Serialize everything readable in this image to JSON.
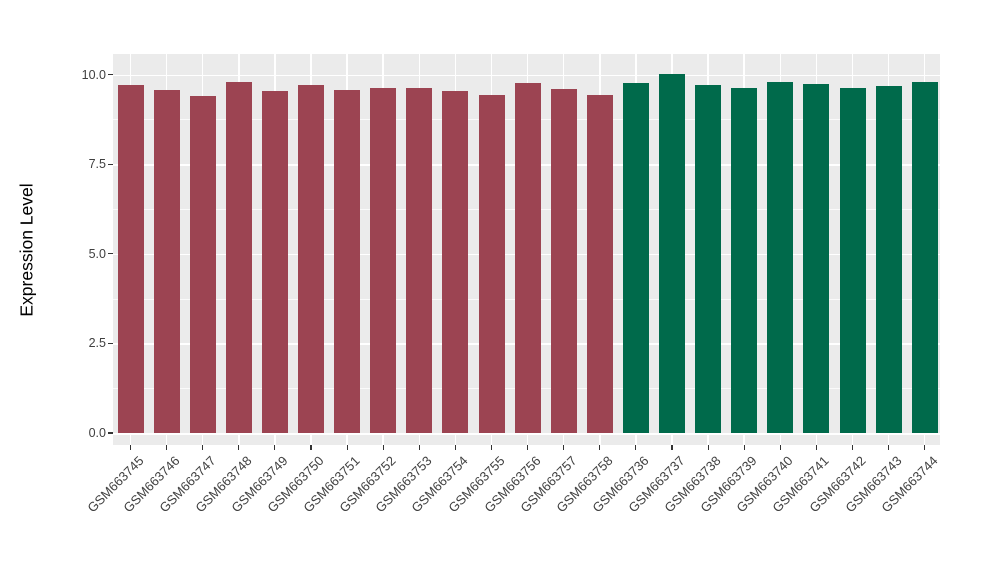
{
  "chart_data": {
    "type": "bar",
    "title": "",
    "xlabel": "",
    "ylabel": "Expression Level",
    "ylim": [
      0,
      10.55
    ],
    "y_ticks": [
      0.0,
      2.5,
      5.0,
      7.5,
      10.0
    ],
    "y_tick_labels": [
      "0.0",
      "2.5",
      "5.0",
      "7.5",
      "10.0"
    ],
    "y_minor_ticks": [
      1.25,
      3.75,
      6.25,
      8.75
    ],
    "grid": "on",
    "legend_position": "none",
    "panel_background": "#EBEBEB",
    "grid_color": "#FFFFFF",
    "group_colors": {
      "group1": "#9C4452",
      "group2": "#006A4B"
    },
    "categories": [
      "GSM663745",
      "GSM663746",
      "GSM663747",
      "GSM663748",
      "GSM663749",
      "GSM663750",
      "GSM663751",
      "GSM663752",
      "GSM663753",
      "GSM663754",
      "GSM663755",
      "GSM663756",
      "GSM663757",
      "GSM663758",
      "GSM663736",
      "GSM663737",
      "GSM663738",
      "GSM663739",
      "GSM663740",
      "GSM663741",
      "GSM663742",
      "GSM663743",
      "GSM663744"
    ],
    "values": [
      9.7,
      9.56,
      9.4,
      9.81,
      9.54,
      9.72,
      9.58,
      9.63,
      9.64,
      9.54,
      9.44,
      9.77,
      9.6,
      9.42,
      9.76,
      10.02,
      9.71,
      9.62,
      9.79,
      9.74,
      9.62,
      9.69,
      9.79
    ],
    "bar_groups": [
      "group1",
      "group1",
      "group1",
      "group1",
      "group1",
      "group1",
      "group1",
      "group1",
      "group1",
      "group1",
      "group1",
      "group1",
      "group1",
      "group1",
      "group2",
      "group2",
      "group2",
      "group2",
      "group2",
      "group2",
      "group2",
      "group2",
      "group2"
    ]
  }
}
